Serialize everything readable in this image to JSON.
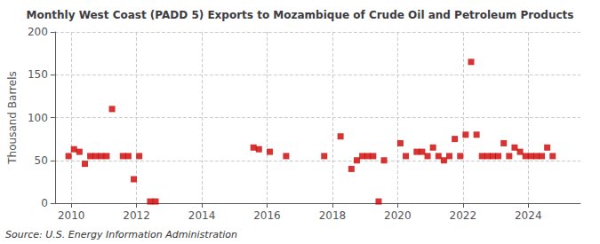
{
  "chart_data": {
    "type": "scatter",
    "title": "Monthly West Coast (PADD 5) Exports to Mozambique of Crude Oil and Petroleum Products",
    "ylabel": "Thousand Barrels",
    "source": "Source: U.S. Energy Information Administration",
    "color": "#cc0000",
    "marker": "square",
    "grid": true,
    "xlim": [
      2009.5,
      2025.6
    ],
    "xticks": [
      2010,
      2012,
      2014,
      2016,
      2018,
      2020,
      2022,
      2024
    ],
    "ylim": [
      0,
      200
    ],
    "yticks": [
      0,
      50,
      100,
      150,
      200
    ],
    "x": [
      2009.917,
      2010.083,
      2010.25,
      2010.417,
      2010.583,
      2010.75,
      2010.917,
      2011.083,
      2011.25,
      2011.583,
      2011.75,
      2011.917,
      2012.083,
      2012.417,
      2012.583,
      2015.583,
      2015.75,
      2016.083,
      2016.583,
      2017.75,
      2018.25,
      2018.583,
      2018.75,
      2018.917,
      2019.083,
      2019.25,
      2019.417,
      2019.583,
      2020.083,
      2020.25,
      2020.583,
      2020.75,
      2020.917,
      2021.083,
      2021.25,
      2021.417,
      2021.583,
      2021.75,
      2021.917,
      2022.083,
      2022.25,
      2022.417,
      2022.583,
      2022.75,
      2022.917,
      2023.083,
      2023.25,
      2023.417,
      2023.583,
      2023.75,
      2023.917,
      2024.083,
      2024.25,
      2024.417,
      2024.583,
      2024.75
    ],
    "values": [
      55,
      63,
      60,
      46,
      55,
      55,
      55,
      55,
      110,
      55,
      55,
      28,
      55,
      2,
      2,
      65,
      63,
      60,
      55,
      55,
      78,
      40,
      50,
      55,
      55,
      55,
      2,
      50,
      70,
      55,
      60,
      60,
      55,
      65,
      55,
      50,
      55,
      75,
      55,
      80,
      165,
      80,
      55,
      55,
      55,
      55,
      70,
      55,
      65,
      60,
      55,
      55,
      55,
      55,
      65,
      55
    ]
  }
}
